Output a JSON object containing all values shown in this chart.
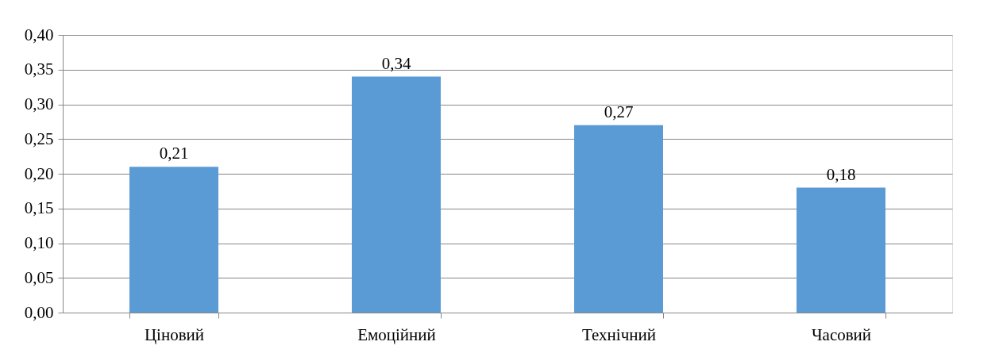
{
  "chart_data": {
    "type": "bar",
    "categories": [
      "Ціновий",
      "Емоційний",
      "Технічний",
      "Часовий"
    ],
    "values": [
      0.21,
      0.34,
      0.27,
      0.18
    ],
    "value_labels": [
      "0,21",
      "0,34",
      "0,27",
      "0,18"
    ],
    "color": "#5b9bd5",
    "ylim": [
      0,
      0.4
    ],
    "yticks": [
      {
        "value": 0,
        "label": "0,00"
      },
      {
        "value": 0.05,
        "label": "0,05"
      },
      {
        "value": 0.1,
        "label": "0,10"
      },
      {
        "value": 0.15,
        "label": "0,15"
      },
      {
        "value": 0.2,
        "label": "0,20"
      },
      {
        "value": 0.25,
        "label": "0,25"
      },
      {
        "value": 0.3,
        "label": "0,30"
      },
      {
        "value": 0.35,
        "label": "0,35"
      },
      {
        "value": 0.4,
        "label": "0,40"
      }
    ],
    "grid": "y"
  }
}
